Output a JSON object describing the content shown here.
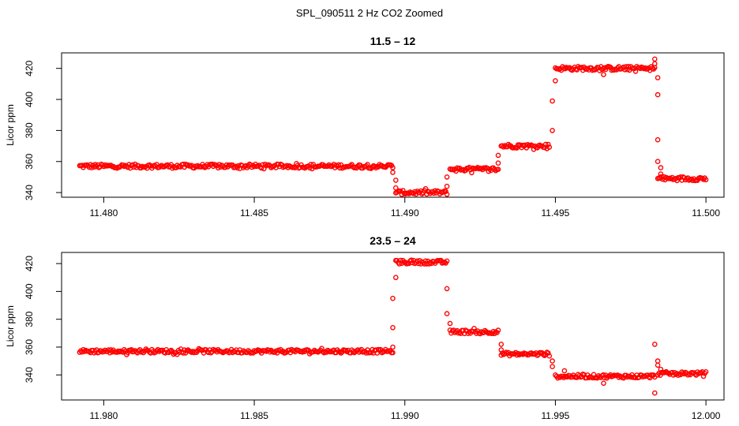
{
  "figure": {
    "title": "SPL_090511  2 Hz CO2 Zoomed"
  },
  "chart_data": [
    {
      "type": "scatter",
      "title": "11.5 – 12",
      "xlabel": "",
      "ylabel": "Licor ppm",
      "xlim": [
        11.4786,
        11.5006
      ],
      "ylim": [
        337,
        430
      ],
      "xticks": [
        11.48,
        11.485,
        11.49,
        11.495,
        11.5
      ],
      "xtick_labels": [
        "11.480",
        "11.485",
        "11.490",
        "11.495",
        "11.500"
      ],
      "yticks": [
        340,
        360,
        380,
        400,
        420
      ],
      "ytick_labels": [
        "340",
        "360",
        "380",
        "400",
        "420"
      ],
      "marker_color": "#ff0000",
      "marker": "open-circle",
      "segments": [
        {
          "x_start": 11.4792,
          "x_end": 11.4896,
          "y": 357
        },
        {
          "x_start": 11.4897,
          "x_end": 11.4914,
          "y": 340
        },
        {
          "x_start": 11.4915,
          "x_end": 11.4931,
          "y": 355
        },
        {
          "x_start": 11.4932,
          "x_end": 11.4948,
          "y": 370
        },
        {
          "x_start": 11.495,
          "x_end": 11.4983,
          "y": 420
        },
        {
          "x_start": 11.4984,
          "x_end": 11.5,
          "y": 349
        }
      ],
      "outliers": [
        {
          "x": 11.4896,
          "y": 353
        },
        {
          "x": 11.4897,
          "y": 348
        },
        {
          "x": 11.4897,
          "y": 343
        },
        {
          "x": 11.4914,
          "y": 344
        },
        {
          "x": 11.4914,
          "y": 350
        },
        {
          "x": 11.4931,
          "y": 359
        },
        {
          "x": 11.4931,
          "y": 364
        },
        {
          "x": 11.4949,
          "y": 380
        },
        {
          "x": 11.4949,
          "y": 399
        },
        {
          "x": 11.495,
          "y": 412
        },
        {
          "x": 11.4966,
          "y": 416
        },
        {
          "x": 11.4983,
          "y": 426
        },
        {
          "x": 11.4983,
          "y": 423
        },
        {
          "x": 11.4984,
          "y": 414
        },
        {
          "x": 11.4984,
          "y": 403
        },
        {
          "x": 11.4984,
          "y": 374
        },
        {
          "x": 11.4984,
          "y": 360
        },
        {
          "x": 11.4985,
          "y": 356
        },
        {
          "x": 11.4985,
          "y": 352
        }
      ]
    },
    {
      "type": "scatter",
      "title": "23.5 – 24",
      "xlabel": "",
      "ylabel": "Licor ppm",
      "xlim": [
        11.9786,
        12.0006
      ],
      "ylim": [
        322,
        428
      ],
      "xticks": [
        11.98,
        11.985,
        11.99,
        11.995,
        12.0
      ],
      "xtick_labels": [
        "11.980",
        "11.985",
        "11.990",
        "11.995",
        "12.000"
      ],
      "yticks": [
        340,
        360,
        380,
        400,
        420
      ],
      "ytick_labels": [
        "340",
        "360",
        "380",
        "400",
        "420"
      ],
      "marker_color": "#ff0000",
      "marker": "open-circle",
      "segments": [
        {
          "x_start": 11.9792,
          "x_end": 11.9896,
          "y": 357
        },
        {
          "x_start": 11.9897,
          "x_end": 11.9914,
          "y": 421
        },
        {
          "x_start": 11.9915,
          "x_end": 11.9931,
          "y": 371
        },
        {
          "x_start": 11.9932,
          "x_end": 11.9948,
          "y": 355
        },
        {
          "x_start": 11.995,
          "x_end": 11.9983,
          "y": 339
        },
        {
          "x_start": 11.9984,
          "x_end": 12.0,
          "y": 341
        }
      ],
      "outliers": [
        {
          "x": 11.9896,
          "y": 360
        },
        {
          "x": 11.9896,
          "y": 374
        },
        {
          "x": 11.9896,
          "y": 395
        },
        {
          "x": 11.9897,
          "y": 410
        },
        {
          "x": 11.9914,
          "y": 402
        },
        {
          "x": 11.9914,
          "y": 384
        },
        {
          "x": 11.9915,
          "y": 377
        },
        {
          "x": 11.9932,
          "y": 362
        },
        {
          "x": 11.9932,
          "y": 358
        },
        {
          "x": 11.9949,
          "y": 350
        },
        {
          "x": 11.9949,
          "y": 346
        },
        {
          "x": 11.9953,
          "y": 343
        },
        {
          "x": 11.9966,
          "y": 334
        },
        {
          "x": 11.9983,
          "y": 362
        },
        {
          "x": 11.9983,
          "y": 327
        },
        {
          "x": 11.9984,
          "y": 350
        },
        {
          "x": 11.9984,
          "y": 347
        },
        {
          "x": 11.9985,
          "y": 344
        }
      ]
    }
  ]
}
